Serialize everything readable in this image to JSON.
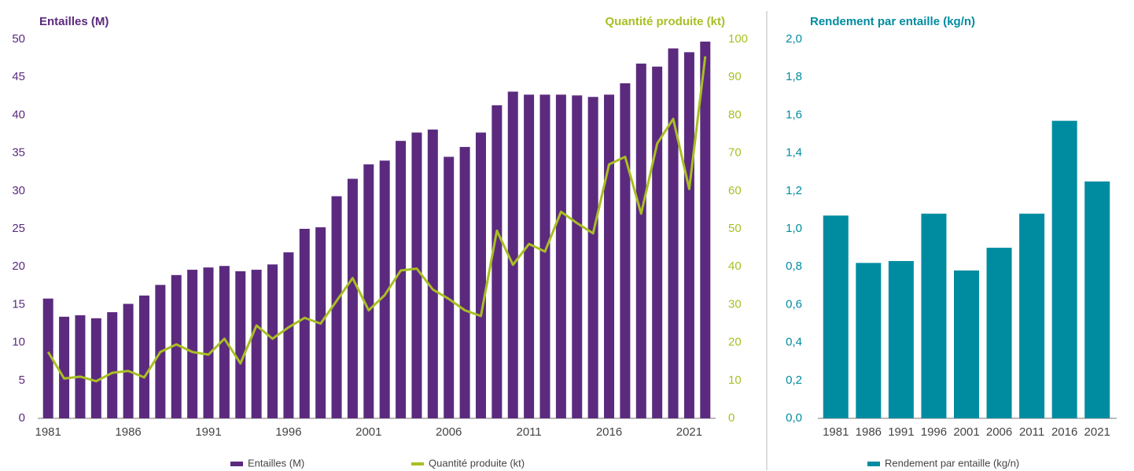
{
  "chart_data": [
    {
      "type": "bar",
      "ylabel": "Entailles (M)",
      "y2label": "Quantité  produite (kt)",
      "categories": [
        "1981",
        null,
        null,
        null,
        null,
        "1986",
        null,
        null,
        null,
        null,
        "1991",
        null,
        null,
        null,
        null,
        "1996",
        null,
        null,
        null,
        null,
        "2001",
        null,
        null,
        null,
        null,
        "2006",
        null,
        null,
        null,
        null,
        "2011",
        null,
        null,
        null,
        null,
        "2016",
        null,
        null,
        null,
        null,
        "2021",
        null
      ],
      "series": [
        {
          "name": "Entailles (M)",
          "type": "bar",
          "color": "#5b2a7e",
          "values": [
            15.8,
            13.4,
            13.6,
            13.2,
            14.0,
            15.1,
            16.2,
            17.6,
            18.9,
            19.6,
            19.9,
            20.1,
            19.4,
            19.6,
            20.3,
            21.9,
            25.0,
            25.2,
            29.3,
            31.6,
            33.5,
            34.0,
            36.6,
            37.7,
            38.1,
            34.5,
            35.8,
            37.7,
            41.3,
            43.1,
            42.7,
            42.7,
            42.7,
            42.6,
            42.4,
            42.7,
            44.2,
            46.8,
            46.4,
            48.8,
            48.3,
            49.7
          ]
        },
        {
          "name": "Quantité produite (kt)",
          "type": "line",
          "axis": "y2",
          "color": "#a9bf23",
          "values": [
            17.5,
            10.5,
            11,
            9.8,
            12,
            12.5,
            10.8,
            17.5,
            19.5,
            17.5,
            16.8,
            21,
            14.5,
            24.5,
            21,
            24,
            26.5,
            25,
            31,
            37,
            28.5,
            32.5,
            39,
            39.5,
            34,
            31.5,
            28.5,
            27,
            49.5,
            40.5,
            46,
            44,
            54.5,
            51.5,
            48.8,
            67,
            69,
            54,
            72.5,
            79,
            60.5,
            95.5
          ]
        }
      ],
      "ylim": [
        0,
        50
      ],
      "yticks": [
        0,
        5,
        10,
        15,
        20,
        25,
        30,
        35,
        40,
        45,
        50
      ],
      "y2lim": [
        0,
        100
      ],
      "y2ticks": [
        0,
        10,
        20,
        30,
        40,
        50,
        60,
        70,
        80,
        90,
        100
      ],
      "grid": false,
      "legend": "bottom"
    },
    {
      "type": "bar",
      "title": "Rendement par entaille (kg/n)",
      "categories": [
        "1981",
        "1986",
        "1991",
        "1996",
        "2001",
        "2006",
        "2011",
        "2016",
        "2021"
      ],
      "series": [
        {
          "name": "Rendement par entaille (kg/n)",
          "type": "bar",
          "color": "#008ca0",
          "values": [
            1.07,
            0.82,
            0.83,
            1.08,
            0.78,
            0.9,
            1.08,
            1.57,
            1.25
          ]
        }
      ],
      "ylim": [
        0,
        2
      ],
      "yticks": [
        {
          "value": 0,
          "label": "0,0"
        },
        {
          "value": 0.2,
          "label": "0,2"
        },
        {
          "value": 0.4,
          "label": "0,4"
        },
        {
          "value": 0.6,
          "label": "0,6"
        },
        {
          "value": 0.8,
          "label": "0,8"
        },
        {
          "value": 1.0,
          "label": "1,0"
        },
        {
          "value": 1.2,
          "label": "1,2"
        },
        {
          "value": 1.4,
          "label": "1,4"
        },
        {
          "value": 1.6,
          "label": "1,6"
        },
        {
          "value": 1.8,
          "label": "1,8"
        },
        {
          "value": 2.0,
          "label": "2,0"
        }
      ],
      "grid": false,
      "legend": "bottom"
    }
  ]
}
